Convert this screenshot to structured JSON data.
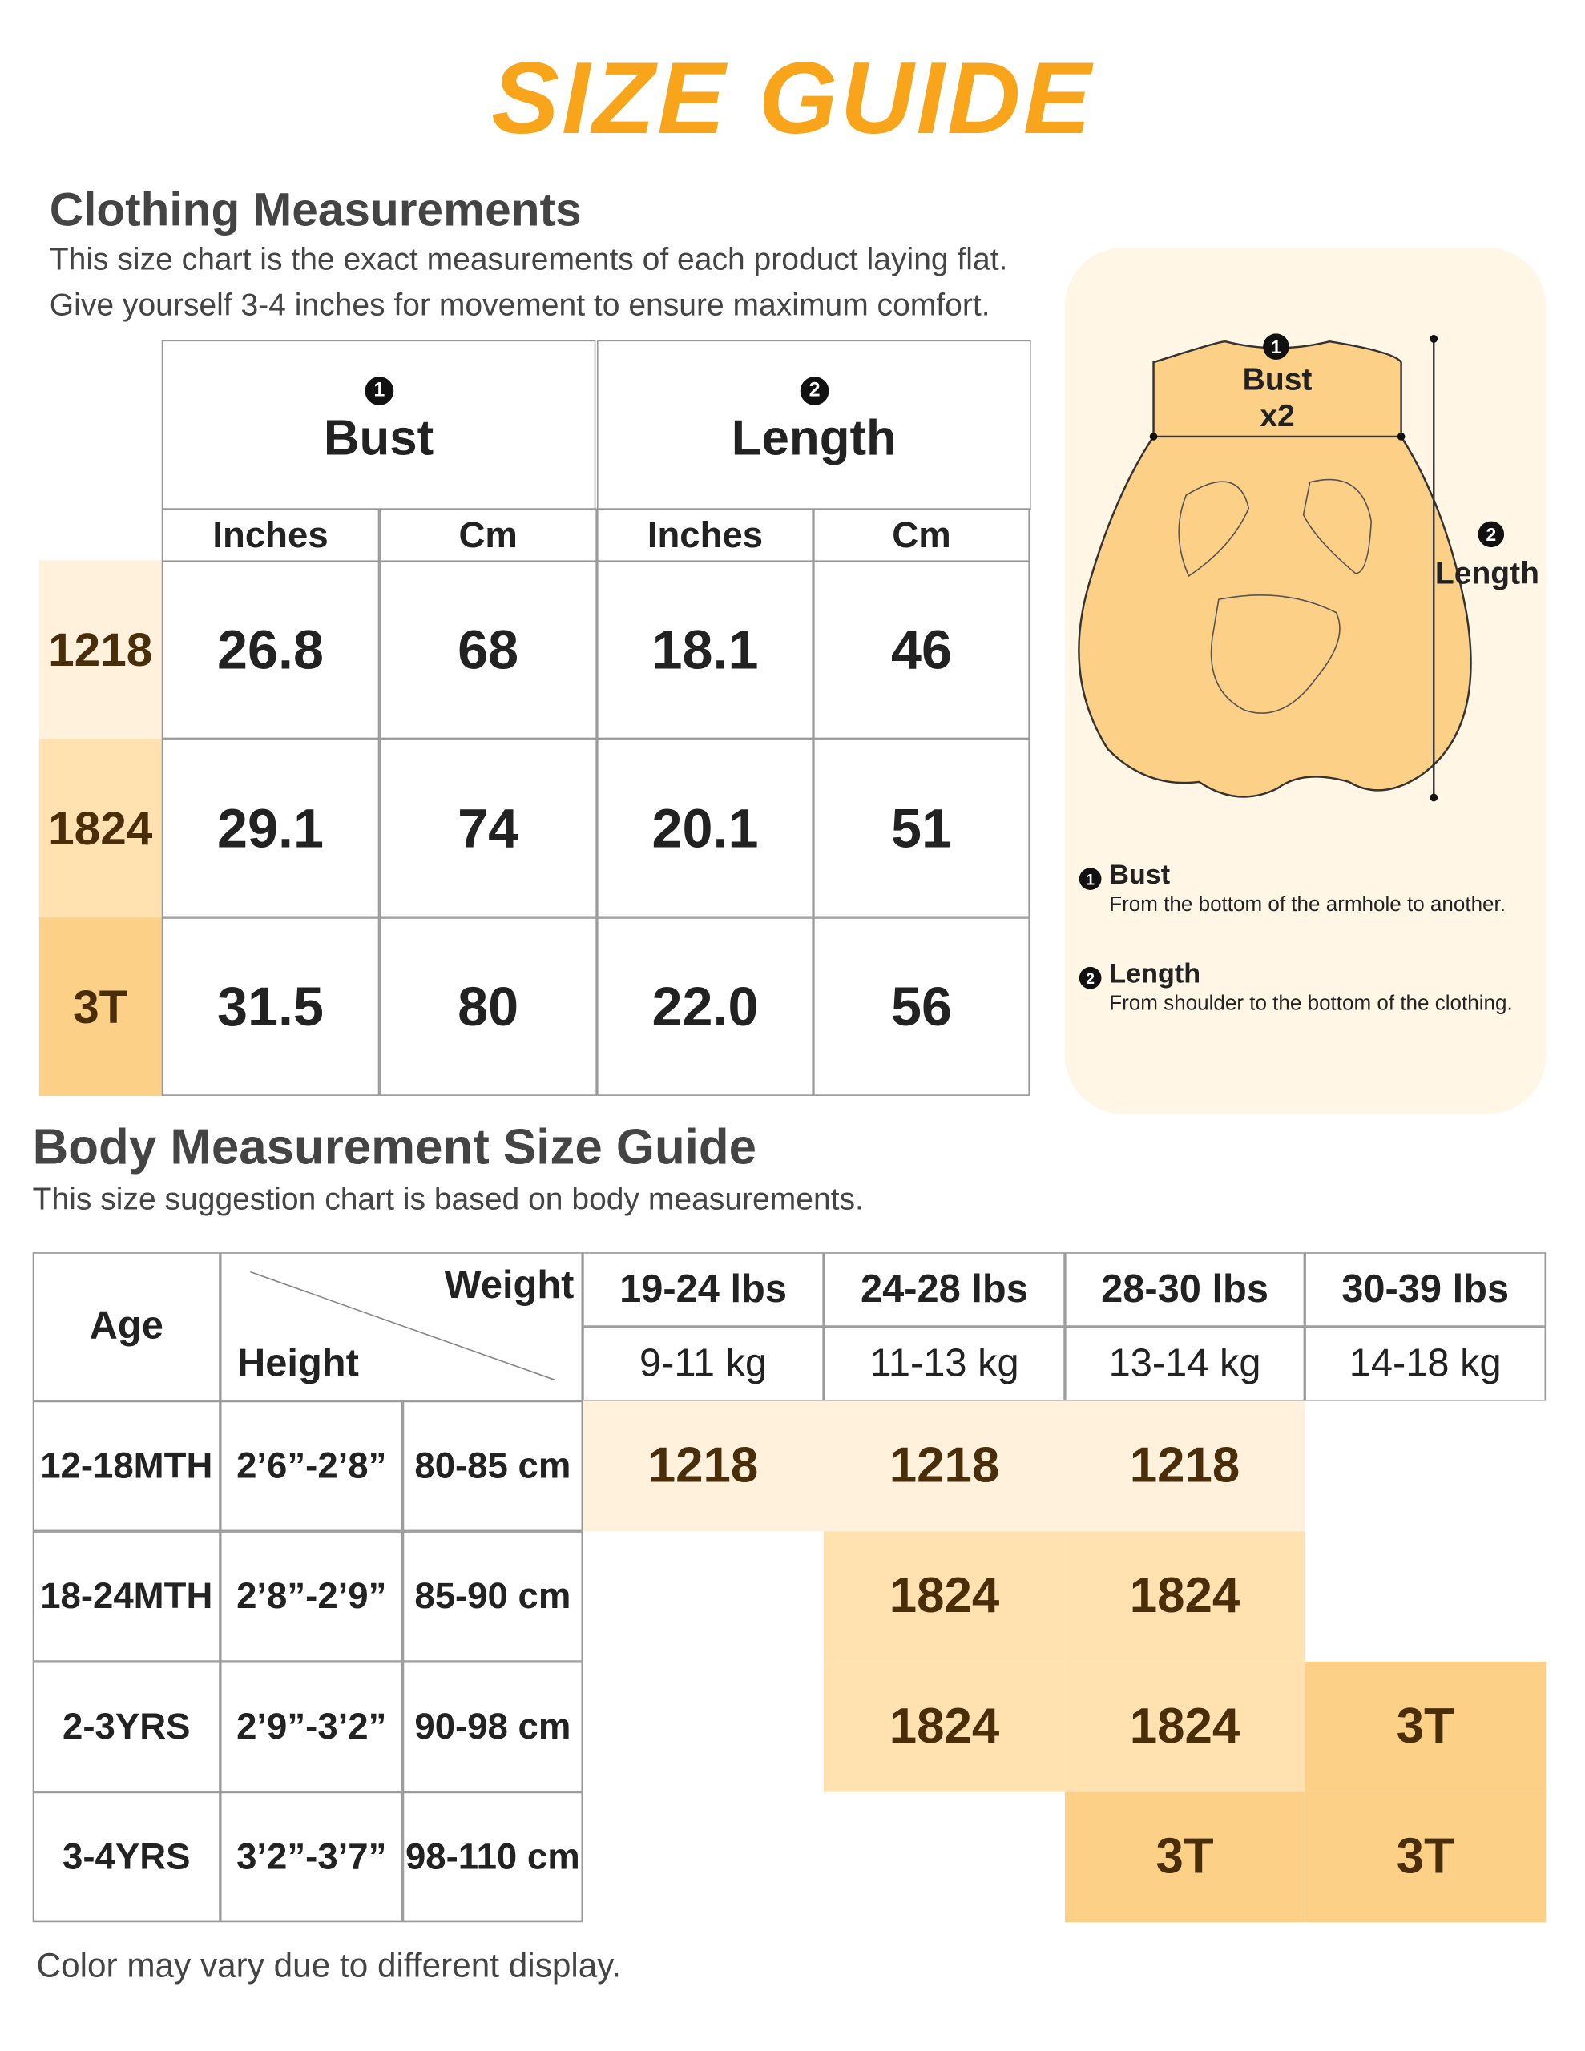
{
  "title": "SIZE GUIDE",
  "clothing": {
    "heading": "Clothing Measurements",
    "description": [
      "This size chart is the exact measurements of each product laying flat.",
      "Give yourself 3-4 inches for movement to ensure maximum comfort."
    ],
    "groups": [
      {
        "marker": "1",
        "name": "Bust"
      },
      {
        "marker": "2",
        "name": "Length"
      }
    ],
    "units": [
      "Inches",
      "Cm",
      "Inches",
      "Cm"
    ],
    "rows": [
      {
        "size": "1218",
        "values": [
          "26.8",
          "68",
          "18.1",
          "46"
        ]
      },
      {
        "size": "1824",
        "values": [
          "29.1",
          "74",
          "20.1",
          "51"
        ]
      },
      {
        "size": "3T",
        "values": [
          "31.5",
          "80",
          "22.0",
          "56"
        ]
      }
    ]
  },
  "diagram": {
    "bust_marker": "1",
    "bust_label": "Bust",
    "bust_factor": "x2",
    "length_marker": "2",
    "length_label": "Length",
    "notes": [
      {
        "marker": "1",
        "title": "Bust",
        "text": "From the bottom of the armhole to another."
      },
      {
        "marker": "2",
        "title": "Length",
        "text": "From shoulder to the bottom of the clothing."
      }
    ]
  },
  "body": {
    "heading": "Body Measurement Size Guide",
    "description": "This size suggestion chart is based on body measurements.",
    "header": {
      "age": "Age",
      "weight": "Weight",
      "height": "Height"
    },
    "weights": [
      {
        "lbs": "19-24 lbs",
        "kg": "9-11 kg"
      },
      {
        "lbs": "24-28 lbs",
        "kg": "11-13 kg"
      },
      {
        "lbs": "28-30 lbs",
        "kg": "13-14 kg"
      },
      {
        "lbs": "30-39 lbs",
        "kg": "14-18 kg"
      }
    ],
    "rows": [
      {
        "age": "12-18MTH",
        "height_ft": "2’6”-2’8”",
        "height_cm": "80-85 cm",
        "sizes": [
          "1218",
          "1218",
          "1218",
          null
        ]
      },
      {
        "age": "18-24MTH",
        "height_ft": "2’8”-2’9”",
        "height_cm": "85-90 cm",
        "sizes": [
          null,
          "1824",
          "1824",
          null
        ]
      },
      {
        "age": "2-3YRS",
        "height_ft": "2’9”-3’2”",
        "height_cm": "90-98 cm",
        "sizes": [
          null,
          "1824",
          "1824",
          "3T"
        ]
      },
      {
        "age": "3-4YRS",
        "height_ft": "3’2”-3’7”",
        "height_cm": "98-110 cm",
        "sizes": [
          null,
          null,
          "3T",
          "3T"
        ]
      }
    ]
  },
  "footer": "Color may vary due to different display."
}
